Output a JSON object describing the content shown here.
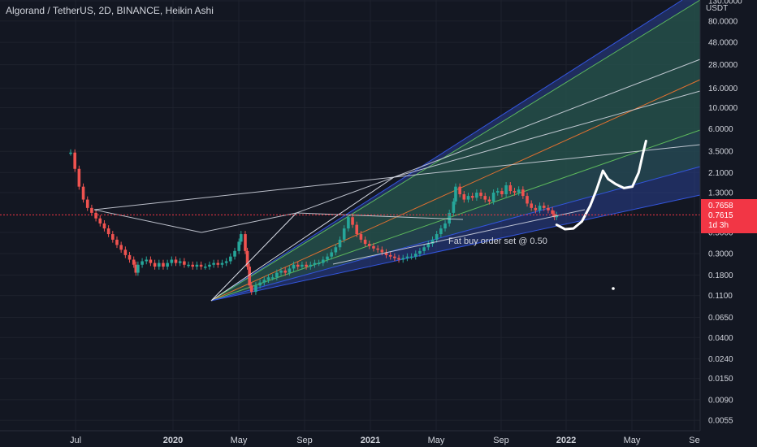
{
  "header": {
    "title": "Algorand / TetherUS, 2D, BINANCE, Heikin Ashi",
    "currency": "USDT"
  },
  "colors": {
    "background": "#131722",
    "grid": "#1e222d",
    "candle_up": "#26a69a",
    "candle_down": "#ef5350",
    "fan_blue_fill": "#2a3f8f",
    "fan_green_fill": "#24503c",
    "fan_line_blue": "#3355dd",
    "fan_line_green": "#5cb85c",
    "fan_line_orange": "#e07030",
    "price_tag": "#f23645"
  },
  "chart_data": {
    "type": "candlestick",
    "scale": "log",
    "title": "Algorand / TetherUS, 2D, BINANCE, Heikin Ashi",
    "y_tick_labels": [
      "130.0000",
      "80.0000",
      "48.0000",
      "28.0000",
      "16.0000",
      "10.0000",
      "6.0000",
      "3.5000",
      "2.1000",
      "1.3000",
      "0.5000",
      "0.3000",
      "0.1800",
      "0.1100",
      "0.0650",
      "0.0400",
      "0.0240",
      "0.0150",
      "0.0090",
      "0.0055"
    ],
    "y_tick_values": [
      130,
      80,
      48,
      28,
      16,
      10,
      6,
      3.5,
      2.1,
      1.3,
      0.5,
      0.3,
      0.18,
      0.11,
      0.065,
      0.04,
      0.024,
      0.015,
      0.009,
      0.0055
    ],
    "x_tick_labels": [
      "Jul",
      "2020",
      "May",
      "Sep",
      "2021",
      "May",
      "Sep",
      "2022",
      "May",
      "Se"
    ],
    "x_tick_bold": [
      false,
      true,
      false,
      false,
      true,
      false,
      false,
      true,
      false,
      false
    ],
    "price_labels": [
      "0.7658",
      "0.7615",
      "1d 3h"
    ],
    "current_price": 0.7615,
    "annotation": "Fat buy order set @ 0.50",
    "price_path": [
      [
        0,
        3.4
      ],
      [
        4,
        2.3
      ],
      [
        8,
        1.5
      ],
      [
        12,
        1.1
      ],
      [
        16,
        0.9
      ],
      [
        20,
        0.8
      ],
      [
        24,
        0.7
      ],
      [
        28,
        0.62
      ],
      [
        32,
        0.55
      ],
      [
        36,
        0.48
      ],
      [
        40,
        0.42
      ],
      [
        44,
        0.37
      ],
      [
        48,
        0.33
      ],
      [
        52,
        0.29
      ],
      [
        56,
        0.26
      ],
      [
        60,
        0.23
      ],
      [
        62,
        0.19
      ],
      [
        64,
        0.23
      ],
      [
        68,
        0.25
      ],
      [
        72,
        0.26
      ],
      [
        76,
        0.24
      ],
      [
        80,
        0.22
      ],
      [
        84,
        0.24
      ],
      [
        88,
        0.22
      ],
      [
        92,
        0.24
      ],
      [
        96,
        0.26
      ],
      [
        100,
        0.24
      ],
      [
        104,
        0.25
      ],
      [
        108,
        0.23
      ],
      [
        112,
        0.23
      ],
      [
        116,
        0.22
      ],
      [
        120,
        0.23
      ],
      [
        124,
        0.22
      ],
      [
        128,
        0.22
      ],
      [
        132,
        0.23
      ],
      [
        136,
        0.24
      ],
      [
        140,
        0.23
      ],
      [
        144,
        0.24
      ],
      [
        148,
        0.25
      ],
      [
        152,
        0.28
      ],
      [
        156,
        0.32
      ],
      [
        160,
        0.4
      ],
      [
        162,
        0.48
      ],
      [
        166,
        0.32
      ],
      [
        168,
        0.22
      ],
      [
        170,
        0.14
      ],
      [
        172,
        0.12
      ],
      [
        176,
        0.14
      ],
      [
        180,
        0.15
      ],
      [
        184,
        0.16
      ],
      [
        188,
        0.17
      ],
      [
        192,
        0.17
      ],
      [
        196,
        0.19
      ],
      [
        200,
        0.2
      ],
      [
        204,
        0.19
      ],
      [
        208,
        0.21
      ],
      [
        212,
        0.23
      ],
      [
        216,
        0.22
      ],
      [
        220,
        0.23
      ],
      [
        224,
        0.22
      ],
      [
        228,
        0.23
      ],
      [
        232,
        0.24
      ],
      [
        236,
        0.24
      ],
      [
        240,
        0.26
      ],
      [
        244,
        0.28
      ],
      [
        248,
        0.31
      ],
      [
        252,
        0.35
      ],
      [
        256,
        0.42
      ],
      [
        260,
        0.55
      ],
      [
        264,
        0.72
      ],
      [
        268,
        0.6
      ],
      [
        272,
        0.48
      ],
      [
        276,
        0.42
      ],
      [
        280,
        0.38
      ],
      [
        284,
        0.36
      ],
      [
        288,
        0.34
      ],
      [
        292,
        0.33
      ],
      [
        296,
        0.31
      ],
      [
        300,
        0.29
      ],
      [
        304,
        0.28
      ],
      [
        308,
        0.27
      ],
      [
        312,
        0.26
      ],
      [
        316,
        0.27
      ],
      [
        320,
        0.28
      ],
      [
        324,
        0.28
      ],
      [
        328,
        0.3
      ],
      [
        332,
        0.32
      ],
      [
        336,
        0.35
      ],
      [
        340,
        0.38
      ],
      [
        344,
        0.42
      ],
      [
        348,
        0.48
      ],
      [
        352,
        0.55
      ],
      [
        356,
        0.62
      ],
      [
        360,
        0.8
      ],
      [
        364,
        1.05
      ],
      [
        366,
        1.5
      ],
      [
        370,
        1.25
      ],
      [
        374,
        1.1
      ],
      [
        378,
        1.2
      ],
      [
        382,
        1.15
      ],
      [
        386,
        1.3
      ],
      [
        390,
        1.2
      ],
      [
        394,
        1.1
      ],
      [
        398,
        1.05
      ],
      [
        402,
        1.3
      ],
      [
        406,
        1.35
      ],
      [
        410,
        1.25
      ],
      [
        414,
        1.55
      ],
      [
        418,
        1.35
      ],
      [
        422,
        1.3
      ],
      [
        426,
        1.4
      ],
      [
        430,
        1.2
      ],
      [
        434,
        1.0
      ],
      [
        438,
        0.9
      ],
      [
        442,
        0.85
      ],
      [
        446,
        0.95
      ],
      [
        450,
        0.9
      ],
      [
        454,
        0.85
      ],
      [
        458,
        0.78
      ],
      [
        460,
        0.72
      ],
      [
        462,
        0.76
      ]
    ],
    "projection_path": [
      [
        462,
        0.6
      ],
      [
        470,
        0.54
      ],
      [
        478,
        0.55
      ],
      [
        486,
        0.65
      ],
      [
        494,
        0.95
      ],
      [
        500,
        1.4
      ],
      [
        506,
        2.2
      ],
      [
        511,
        1.8
      ],
      [
        518,
        1.6
      ],
      [
        526,
        1.45
      ],
      [
        534,
        1.5
      ],
      [
        540,
        2.1
      ],
      [
        544,
        3.3
      ],
      [
        547,
        4.5
      ]
    ]
  }
}
